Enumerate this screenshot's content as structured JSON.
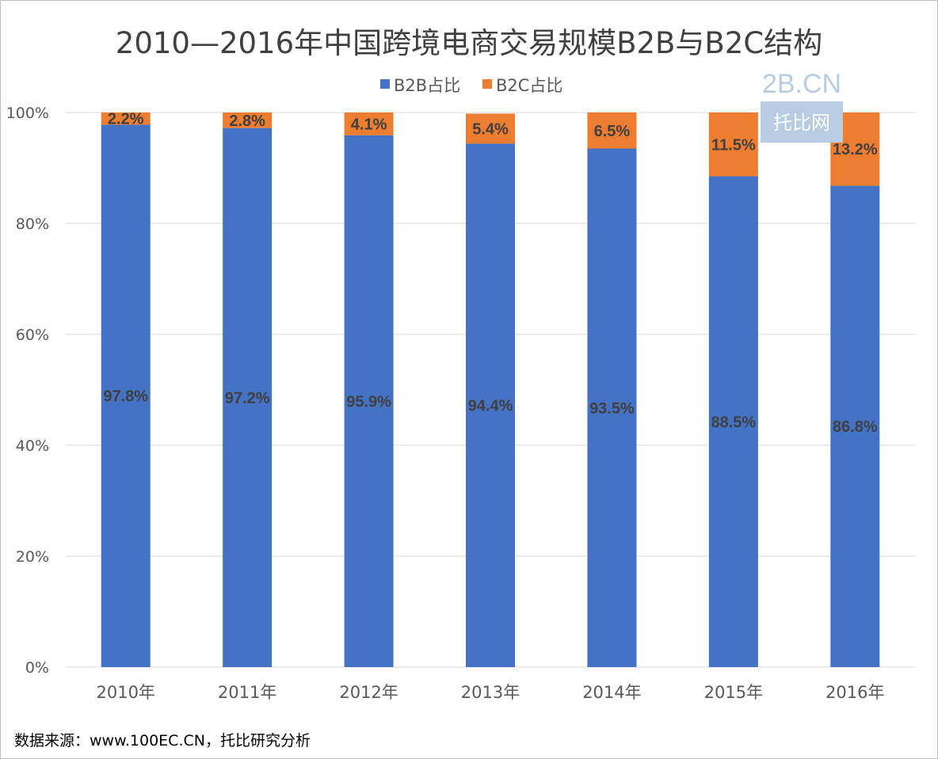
{
  "colors": {
    "b2b": "#4472c4",
    "b2c": "#ed7d31",
    "grid": "#d9d9d9",
    "watermark_box": "#b8cce4"
  },
  "chart_data": {
    "type": "bar",
    "stacked": true,
    "title": "2010—2016年中国跨境电商交易规模B2B与B2C结构",
    "categories": [
      "2010年",
      "2011年",
      "2012年",
      "2013年",
      "2014年",
      "2015年",
      "2016年"
    ],
    "series": [
      {
        "name": "B2B占比",
        "values": [
          97.8,
          97.2,
          95.9,
          94.4,
          93.5,
          88.5,
          86.8
        ],
        "labels": [
          "97.8%",
          "97.2%",
          "95.9%",
          "94.4%",
          "93.5%",
          "88.5%",
          "86.8%"
        ]
      },
      {
        "name": "B2C占比",
        "values": [
          2.2,
          2.8,
          4.1,
          5.4,
          6.5,
          11.5,
          13.2
        ],
        "labels": [
          "2.2%",
          "2.8%",
          "4.1%",
          "5.4%",
          "6.5%",
          "11.5%",
          "13.2%"
        ]
      }
    ],
    "yticks": [
      "0%",
      "20%",
      "40%",
      "60%",
      "80%",
      "100%"
    ],
    "ylim": [
      0,
      100
    ],
    "xlabel": "",
    "ylabel": "",
    "grid": true,
    "legend_position": "top-center"
  },
  "watermark": {
    "domain": "2B.CN",
    "name": "托比网"
  },
  "footer": {
    "source": "数据来源：www.100EC.CN，托比研究分析"
  }
}
